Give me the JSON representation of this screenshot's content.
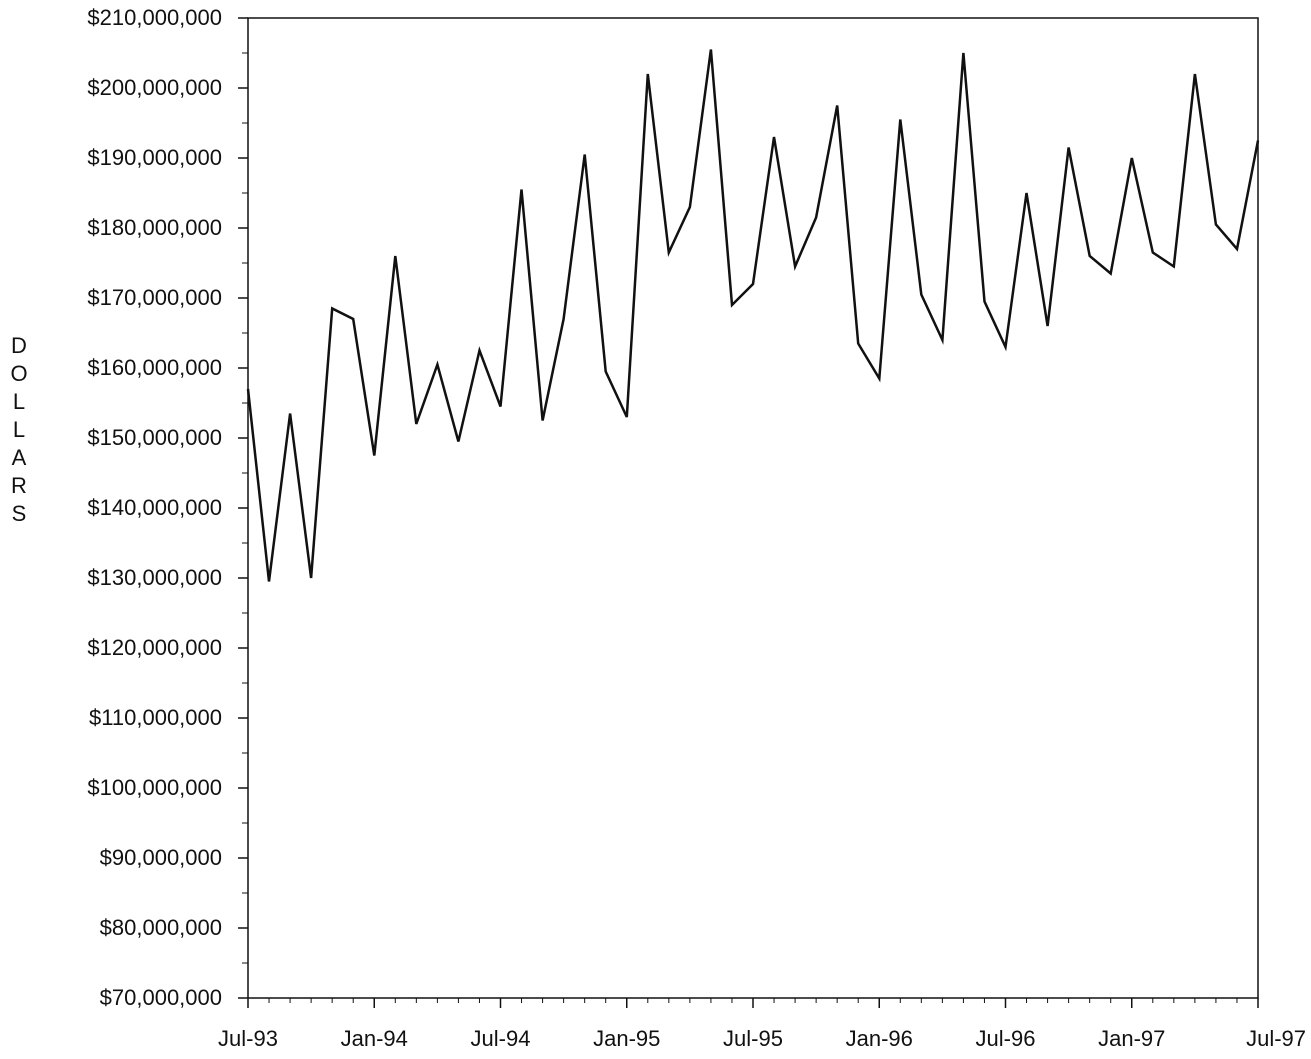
{
  "chart_data": {
    "type": "line",
    "title": "",
    "xlabel": "",
    "ylabel": "DOLLARS",
    "ylim": [
      70000000,
      210000000
    ],
    "y_ticks": [
      70000000,
      80000000,
      90000000,
      100000000,
      110000000,
      120000000,
      130000000,
      140000000,
      150000000,
      160000000,
      170000000,
      180000000,
      190000000,
      200000000,
      210000000
    ],
    "y_tick_labels": [
      "$70,000,000",
      "$80,000,000",
      "$90,000,000",
      "$100,000,000",
      "$110,000,000",
      "$120,000,000",
      "$130,000,000",
      "$140,000,000",
      "$150,000,000",
      "$160,000,000",
      "$170,000,000",
      "$180,000,000",
      "$190,000,000",
      "$200,000,000",
      "$210,000,000"
    ],
    "x_tick_labels": [
      "Jul-93",
      "Jan-94",
      "Jul-94",
      "Jan-95",
      "Jul-95",
      "Jan-96",
      "Jul-96",
      "Jan-97",
      "Jul-97"
    ],
    "x_tick_months": [
      "1993-07",
      "1994-01",
      "1994-07",
      "1995-01",
      "1995-07",
      "1996-01",
      "1996-07",
      "1997-01",
      "1997-07"
    ],
    "grid": false,
    "series": [
      {
        "x": [
          "1993-07",
          "1993-08",
          "1993-09",
          "1993-10",
          "1993-11",
          "1993-12",
          "1994-01",
          "1994-02",
          "1994-03",
          "1994-04",
          "1994-05",
          "1994-06",
          "1994-07",
          "1994-08",
          "1994-09",
          "1994-10",
          "1994-11",
          "1994-12",
          "1995-01",
          "1995-02",
          "1995-03",
          "1995-04",
          "1995-05",
          "1995-06",
          "1995-07",
          "1995-08",
          "1995-09",
          "1995-10",
          "1995-11",
          "1995-12",
          "1996-01",
          "1996-02",
          "1996-03",
          "1996-04",
          "1996-05",
          "1996-06",
          "1996-07",
          "1996-08",
          "1996-09",
          "1996-10",
          "1996-11",
          "1996-12",
          "1997-01",
          "1997-02",
          "1997-03",
          "1997-04",
          "1997-05",
          "1997-06",
          "1997-07"
        ],
        "values": [
          157000000,
          129500000,
          153500000,
          130000000,
          168500000,
          167000000,
          147500000,
          176000000,
          152000000,
          160500000,
          149500000,
          162500000,
          154500000,
          185500000,
          152500000,
          167000000,
          190500000,
          159500000,
          153000000,
          202000000,
          176500000,
          183000000,
          205500000,
          169000000,
          172000000,
          193000000,
          174500000,
          181500000,
          197500000,
          163500000,
          158500000,
          195500000,
          170500000,
          164000000,
          205000000,
          169500000,
          163000000,
          185000000,
          166000000,
          191500000,
          176000000,
          173500000,
          190000000,
          176500000,
          174500000,
          202000000,
          180500000,
          177000000,
          192500000
        ]
      }
    ]
  }
}
